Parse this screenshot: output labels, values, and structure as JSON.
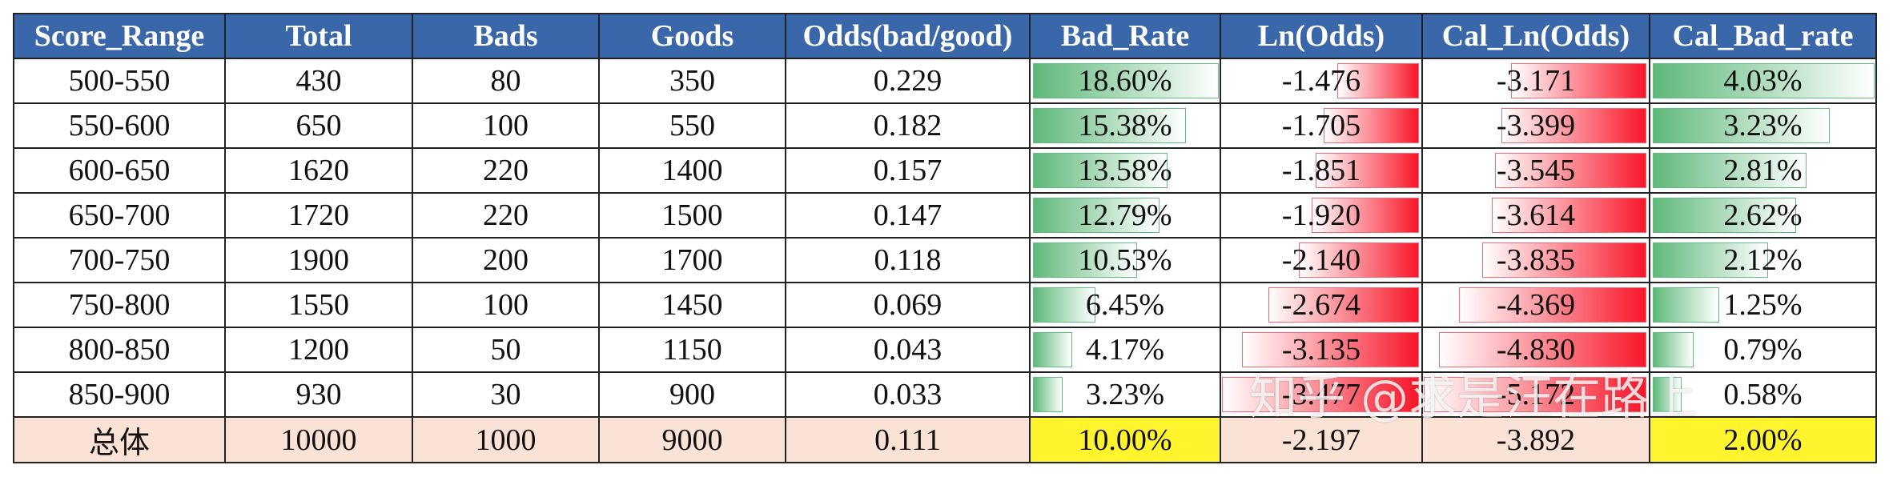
{
  "table": {
    "headers": [
      "Score_Range",
      "Total",
      "Bads",
      "Goods",
      "Odds(bad/good)",
      "Bad_Rate",
      "Ln(Odds)",
      "Cal_Ln(Odds)",
      "Cal_Bad_rate"
    ],
    "rows": [
      [
        "500-550",
        "430",
        "80",
        "350",
        "0.229",
        "18.60%",
        "-1.476",
        "-3.171",
        "4.03%"
      ],
      [
        "550-600",
        "650",
        "100",
        "550",
        "0.182",
        "15.38%",
        "-1.705",
        "-3.399",
        "3.23%"
      ],
      [
        "600-650",
        "1620",
        "220",
        "1400",
        "0.157",
        "13.58%",
        "-1.851",
        "-3.545",
        "2.81%"
      ],
      [
        "650-700",
        "1720",
        "220",
        "1500",
        "0.147",
        "12.79%",
        "-1.920",
        "-3.614",
        "2.62%"
      ],
      [
        "700-750",
        "1900",
        "200",
        "1700",
        "0.118",
        "10.53%",
        "-2.140",
        "-3.835",
        "2.12%"
      ],
      [
        "750-800",
        "1550",
        "100",
        "1450",
        "0.069",
        "6.45%",
        "-2.674",
        "-4.369",
        "1.25%"
      ],
      [
        "800-850",
        "1200",
        "50",
        "1150",
        "0.043",
        "4.17%",
        "-3.135",
        "-4.830",
        "0.79%"
      ],
      [
        "850-900",
        "930",
        "30",
        "900",
        "0.033",
        "3.23%",
        "-3.477",
        "-5.172",
        "0.58%"
      ]
    ],
    "total_row": [
      "总体",
      "10000",
      "1000",
      "9000",
      "0.111",
      "10.00%",
      "-2.197",
      "-3.892",
      "2.00%"
    ]
  },
  "data_bars": {
    "bad_rate": [
      18.6,
      15.38,
      13.58,
      12.79,
      10.53,
      6.45,
      4.17,
      3.23
    ],
    "ln_odds": [
      -1.476,
      -1.705,
      -1.851,
      -1.92,
      -2.14,
      -2.674,
      -3.135,
      -3.477
    ],
    "cal_ln_odds": [
      -3.171,
      -3.399,
      -3.545,
      -3.614,
      -3.835,
      -4.369,
      -4.83,
      -5.172
    ],
    "cal_bad_rate": [
      4.03,
      3.23,
      2.81,
      2.62,
      2.12,
      1.25,
      0.79,
      0.58
    ],
    "positive_bar_color": "#5eb87a",
    "negative_bar_color": "#f8172a"
  },
  "colors": {
    "header_background": "#3a67a9",
    "total_row_background": "#fbe2d6",
    "highlight_yellow": "#fff42e"
  },
  "watermark": "知乎 @求是汪在路上"
}
